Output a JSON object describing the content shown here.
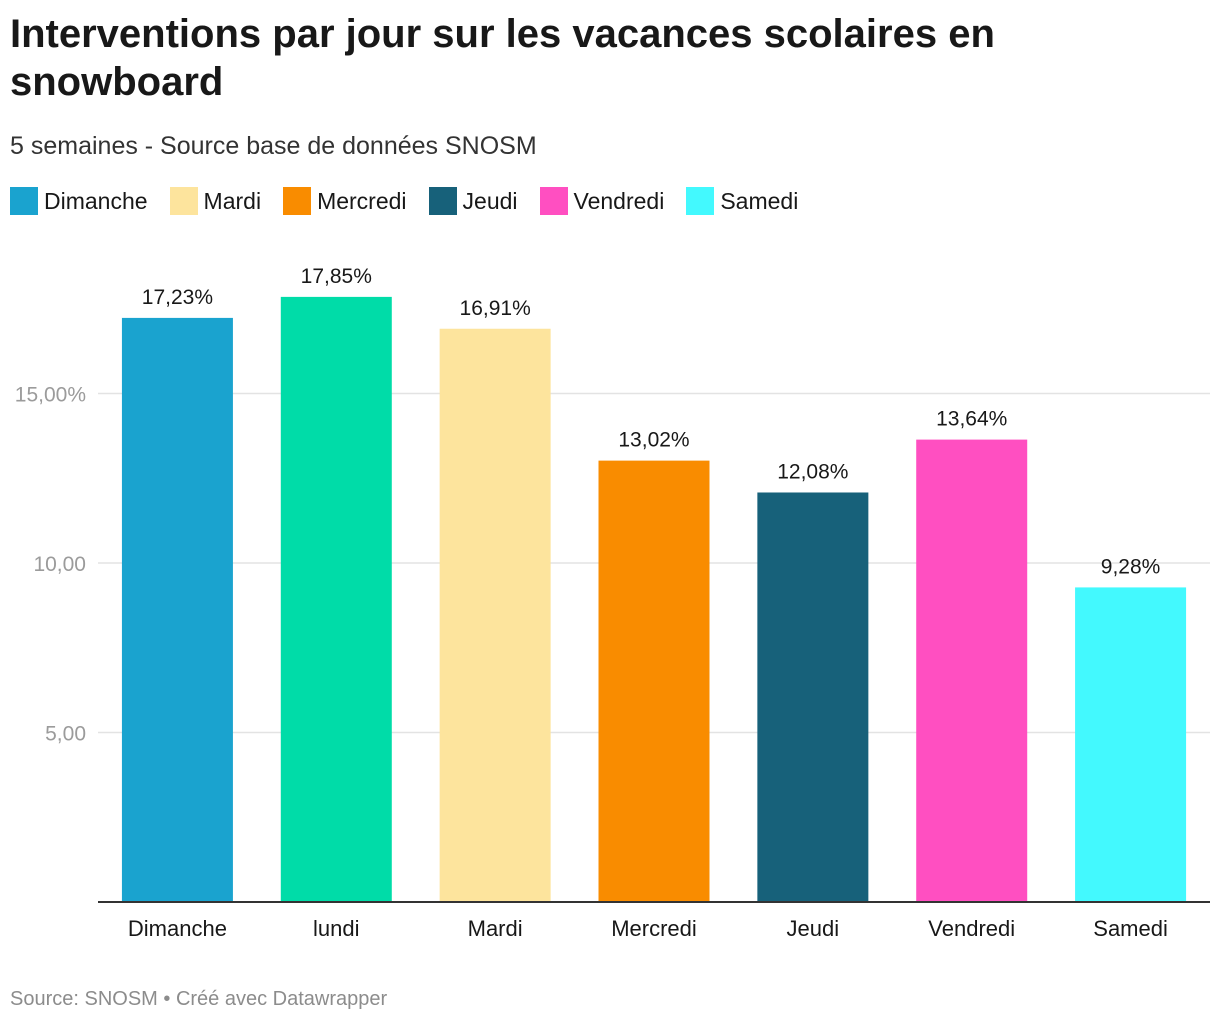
{
  "header": {
    "title": "Interventions par jour sur les vacances scolaires en snowboard",
    "subtitle": "5 semaines - Source base de données SNOSM"
  },
  "legend": [
    {
      "label": "Dimanche",
      "color": "#1aa3cf"
    },
    {
      "label": "Mardi",
      "color": "#fde49d"
    },
    {
      "label": "Mercredi",
      "color": "#f98c00"
    },
    {
      "label": "Jeudi",
      "color": "#17617a"
    },
    {
      "label": "Vendredi",
      "color": "#ff4fc1"
    },
    {
      "label": "Samedi",
      "color": "#43f9fe"
    }
  ],
  "chart_data": {
    "type": "bar",
    "categories": [
      "Dimanche",
      "lundi",
      "Mardi",
      "Mercredi",
      "Jeudi",
      "Vendredi",
      "Samedi"
    ],
    "values": [
      17.23,
      17.85,
      16.91,
      13.02,
      12.08,
      13.64,
      9.28
    ],
    "value_labels": [
      "17,23%",
      "17,85%",
      "16,91%",
      "13,02%",
      "12,08%",
      "13,64%",
      "9,28%"
    ],
    "colors": [
      "#1aa3cf",
      "#00dca8",
      "#fde49d",
      "#f98c00",
      "#17617a",
      "#ff4fc1",
      "#43f9fe"
    ],
    "y_ticks": [
      {
        "value": 5,
        "label": "5,00"
      },
      {
        "value": 10,
        "label": "10,00"
      },
      {
        "value": 15,
        "label": "15,00%"
      }
    ],
    "ylim": [
      0,
      20
    ],
    "grid": true,
    "legend_position": "top-left"
  },
  "footer": {
    "source": "Source: SNOSM • Créé avec Datawrapper"
  }
}
